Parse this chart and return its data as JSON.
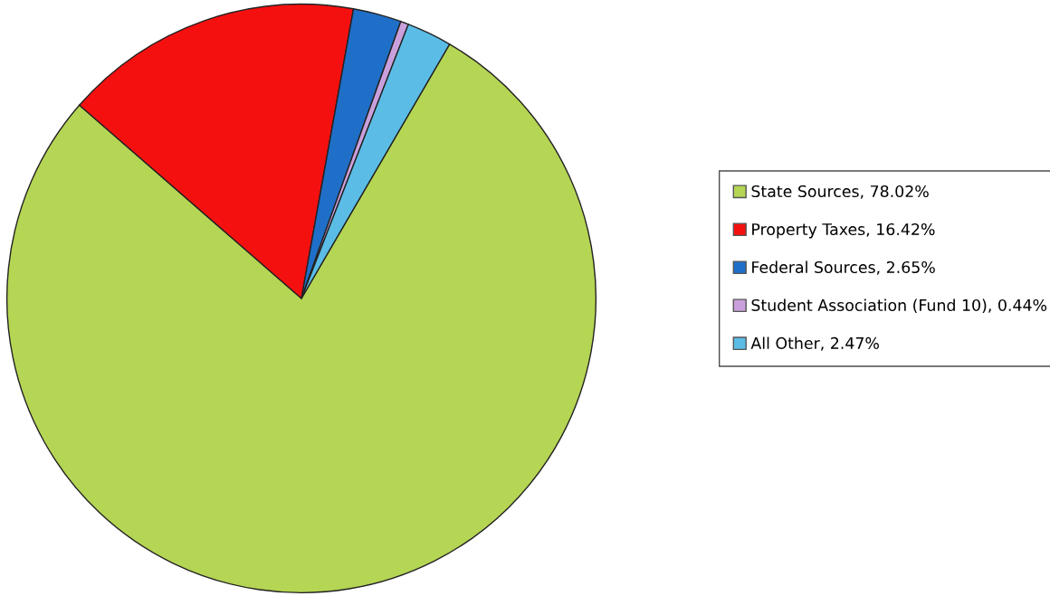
{
  "chart_data": {
    "type": "pie",
    "categories": [
      "State Sources, 78.02%",
      "Property Taxes, 16.42%",
      "Federal Sources, 2.65%",
      "Student Association (Fund 10), 0.44%",
      "All Other, 2.47%"
    ],
    "values": [
      78.02,
      16.42,
      2.65,
      0.44,
      2.47
    ],
    "colors": [
      "#b5d554",
      "#f51010",
      "#1f6fc8",
      "#c9a0dc",
      "#5bbde6"
    ],
    "legend": "right"
  }
}
